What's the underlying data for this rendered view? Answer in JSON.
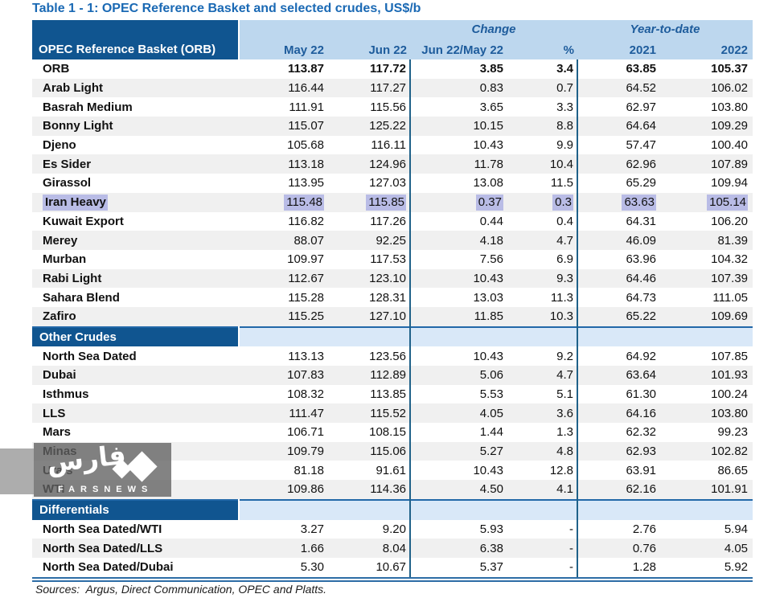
{
  "title": "Table 1 - 1: OPEC Reference Basket and selected crudes, US$/b",
  "colors": {
    "title_blue": "#1a69b4",
    "dark_blue_cell": "#105590",
    "header_band": "#bdd7ee",
    "section_band": "#d9e8f8",
    "row_stripe": "#f0f0f0",
    "header_text": "#1e5c9c",
    "section_line": "#2268a8",
    "vertical_line": "#1f6189",
    "bottom_double_line": "#2d6da6",
    "highlight": "#b9bce6"
  },
  "table": {
    "corner_label": "OPEC Reference Basket (ORB)",
    "group_headers": {
      "change": "Change",
      "ytd": "Year-to-date"
    },
    "columns": [
      "May 22",
      "Jun 22",
      "Jun 22/May 22",
      "%",
      "2021",
      "2022"
    ],
    "sections": [
      {
        "header": null,
        "rows": [
          {
            "label": "ORB",
            "bold": true,
            "values": [
              "113.87",
              "117.72",
              "3.85",
              "3.4",
              "63.85",
              "105.37"
            ]
          },
          {
            "label": "Arab Light",
            "values": [
              "116.44",
              "117.27",
              "0.83",
              "0.7",
              "64.52",
              "106.02"
            ]
          },
          {
            "label": "Basrah Medium",
            "values": [
              "111.91",
              "115.56",
              "3.65",
              "3.3",
              "62.97",
              "103.80"
            ]
          },
          {
            "label": "Bonny Light",
            "values": [
              "115.07",
              "125.22",
              "10.15",
              "8.8",
              "64.64",
              "109.29"
            ]
          },
          {
            "label": "Djeno",
            "values": [
              "105.68",
              "116.11",
              "10.43",
              "9.9",
              "57.47",
              "100.40"
            ]
          },
          {
            "label": "Es Sider",
            "values": [
              "113.18",
              "124.96",
              "11.78",
              "10.4",
              "62.96",
              "107.89"
            ]
          },
          {
            "label": "Girassol",
            "values": [
              "113.95",
              "127.03",
              "13.08",
              "11.5",
              "65.29",
              "109.94"
            ]
          },
          {
            "label": "Iran Heavy",
            "highlighted": true,
            "values": [
              "115.48",
              "115.85",
              "0.37",
              "0.3",
              "63.63",
              "105.14"
            ]
          },
          {
            "label": "Kuwait Export",
            "values": [
              "116.82",
              "117.26",
              "0.44",
              "0.4",
              "64.31",
              "106.20"
            ]
          },
          {
            "label": "Merey",
            "values": [
              "88.07",
              "92.25",
              "4.18",
              "4.7",
              "46.09",
              "81.39"
            ]
          },
          {
            "label": "Murban",
            "values": [
              "109.97",
              "117.53",
              "7.56",
              "6.9",
              "63.96",
              "104.32"
            ]
          },
          {
            "label": "Rabi Light",
            "values": [
              "112.67",
              "123.10",
              "10.43",
              "9.3",
              "64.46",
              "107.39"
            ]
          },
          {
            "label": "Sahara Blend",
            "values": [
              "115.28",
              "128.31",
              "13.03",
              "11.3",
              "64.73",
              "111.05"
            ]
          },
          {
            "label": "Zafiro",
            "values": [
              "115.25",
              "127.10",
              "11.85",
              "10.3",
              "65.22",
              "109.69"
            ]
          }
        ]
      },
      {
        "header": "Other Crudes",
        "rows": [
          {
            "label": "North Sea Dated",
            "values": [
              "113.13",
              "123.56",
              "10.43",
              "9.2",
              "64.92",
              "107.85"
            ]
          },
          {
            "label": "Dubai",
            "values": [
              "107.83",
              "112.89",
              "5.06",
              "4.7",
              "63.64",
              "101.93"
            ]
          },
          {
            "label": "Isthmus",
            "values": [
              "108.32",
              "113.85",
              "5.53",
              "5.1",
              "61.30",
              "100.24"
            ]
          },
          {
            "label": "LLS",
            "values": [
              "111.47",
              "115.52",
              "4.05",
              "3.6",
              "64.16",
              "103.80"
            ]
          },
          {
            "label": "Mars",
            "values": [
              "106.71",
              "108.15",
              "1.44",
              "1.3",
              "62.32",
              "99.23"
            ]
          },
          {
            "label": "Minas",
            "values": [
              "109.79",
              "115.06",
              "5.27",
              "4.8",
              "62.93",
              "102.82"
            ]
          },
          {
            "label": "Urals",
            "values": [
              "81.18",
              "91.61",
              "10.43",
              "12.8",
              "63.91",
              "86.65"
            ]
          },
          {
            "label": "WTI",
            "values": [
              "109.86",
              "114.36",
              "4.50",
              "4.1",
              "62.16",
              "101.91"
            ]
          }
        ]
      },
      {
        "header": "Differentials",
        "rows": [
          {
            "label": "North Sea Dated/WTI",
            "values": [
              "3.27",
              "9.20",
              "5.93",
              "-",
              "2.76",
              "5.94"
            ]
          },
          {
            "label": "North Sea Dated/LLS",
            "values": [
              "1.66",
              "8.04",
              "6.38",
              "-",
              "0.76",
              "4.05"
            ]
          },
          {
            "label": "North Sea Dated/Dubai",
            "values": [
              "5.30",
              "10.67",
              "5.37",
              "-",
              "1.28",
              "5.92"
            ]
          }
        ]
      }
    ]
  },
  "watermark": {
    "logo_text": "فارس",
    "caption": "FARSNEWS"
  },
  "sources": "Sources:  Argus, Direct Communication, OPEC and Platts."
}
